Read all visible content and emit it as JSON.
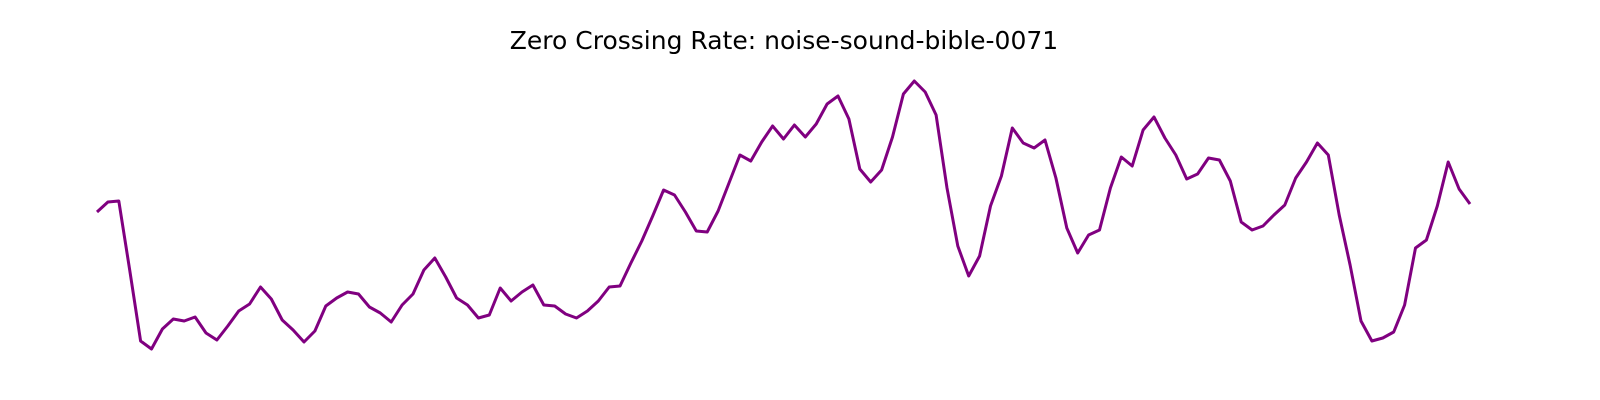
{
  "chart_data": {
    "type": "line",
    "title": "Zero Crossing Rate: noise-sound-bible-0071",
    "color": "#800080",
    "values": [
      188,
      198,
      199,
      130,
      59,
      51,
      71,
      81,
      79,
      83,
      67,
      60,
      74,
      89,
      96,
      113,
      101,
      80,
      70,
      58,
      69,
      94,
      102,
      108,
      106,
      93,
      87,
      78,
      95,
      106,
      130,
      142,
      123,
      102,
      95,
      82,
      85,
      112,
      99,
      108,
      115,
      95,
      94,
      86,
      82,
      89,
      99,
      113,
      114,
      137,
      159,
      184,
      210,
      205,
      188,
      169,
      168,
      189,
      217,
      245,
      239,
      258,
      274,
      261,
      275,
      263,
      276,
      296,
      304,
      281,
      231,
      218,
      230,
      263,
      306,
      319,
      308,
      285,
      212,
      154,
      124,
      144,
      194,
      224,
      272,
      257,
      252,
      260,
      222,
      172,
      147,
      165,
      170,
      212,
      243,
      234,
      270,
      283,
      262,
      245,
      221,
      226,
      242,
      240,
      219,
      178,
      170,
      174,
      185,
      195,
      222,
      238,
      257,
      245,
      185,
      135,
      79,
      59,
      62,
      68,
      95,
      152,
      160,
      194,
      238,
      211,
      196
    ]
  }
}
